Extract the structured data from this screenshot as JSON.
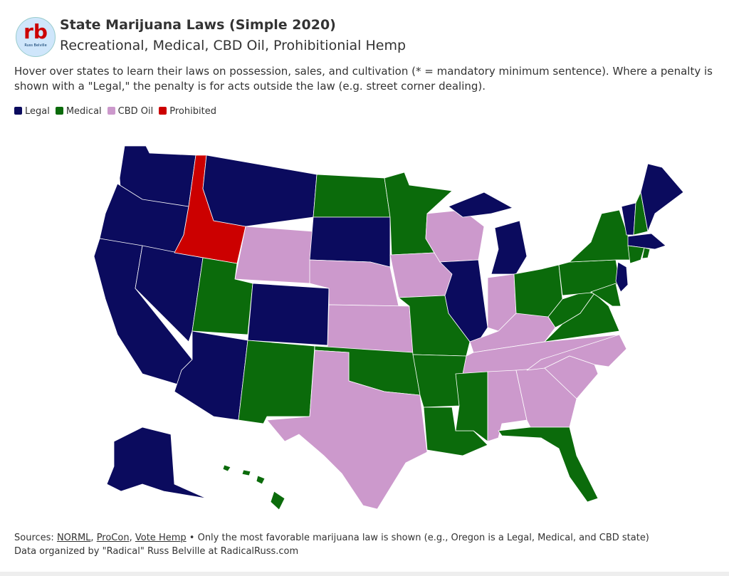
{
  "logo": {
    "text": "rb",
    "caption": "Russ Belville"
  },
  "header": {
    "title": "State Marijuana Laws (Simple 2020)",
    "subtitle": "Recreational, Medical, CBD Oil, Prohibitionial Hemp",
    "description": "Hover over states to learn their laws on possession, sales, and cultivation (* = mandatory minimum sentence). Where a penalty is shown with a \"Legal,\" the penalty is for acts outside the law (e.g. street corner dealing)."
  },
  "legend": [
    {
      "label": "Legal",
      "color": "#0b0b5e"
    },
    {
      "label": "Medical",
      "color": "#0b6b0b"
    },
    {
      "label": "CBD Oil",
      "color": "#cc99cc"
    },
    {
      "label": "Prohibited",
      "color": "#cc0000"
    }
  ],
  "footer": {
    "sources_label": "Sources:",
    "links": [
      "NORML",
      "ProCon",
      "Vote Hemp"
    ],
    "link_separator": ",",
    "note": "• Only the most favorable marijuana law is shown (e.g., Oregon is a Legal, Medical, and CBD state)",
    "credit": "Data organized by \"Radical\" Russ Belville at RadicalRuss.com"
  }
}
